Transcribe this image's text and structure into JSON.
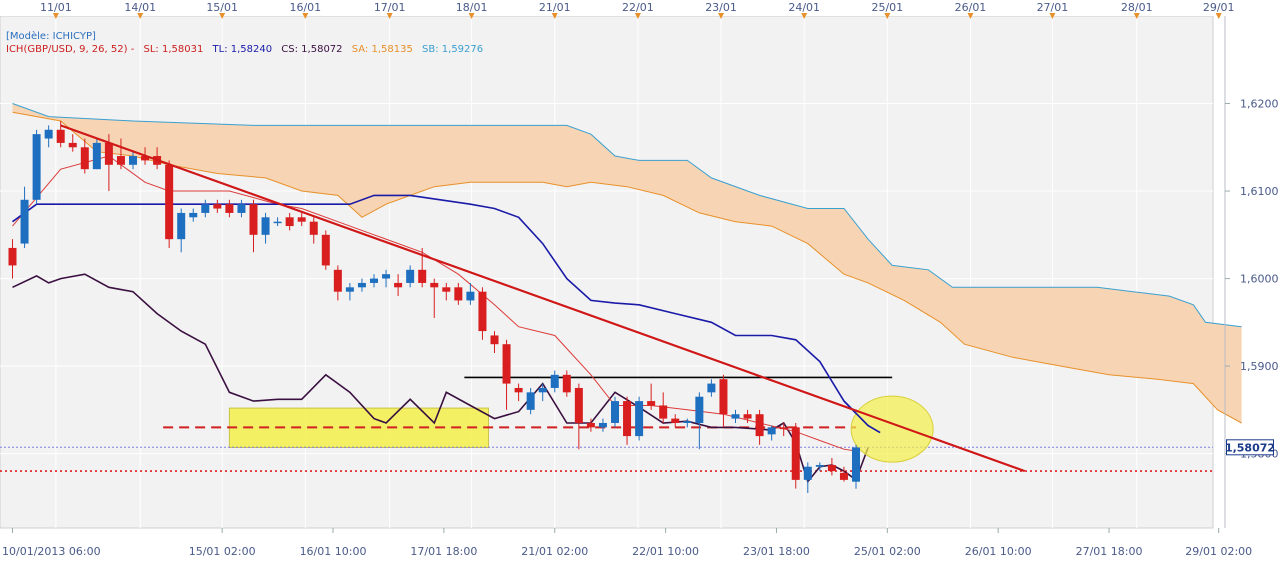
{
  "chart_data": {
    "type": "candlestick",
    "model_label": "[Modèle: ICHICYP]",
    "indicator": {
      "name": "ICH(GBP/USD, 9, 26, 52) -",
      "sl": "SL: 1,58031",
      "tl": "TL: 1,58240",
      "cs": "CS: 1,58072",
      "sa": "SA: 1,58135",
      "sb": "SB: 1,59276"
    },
    "current_price_label": "1,58072",
    "current_price": 1.58072,
    "ylim": [
      1.5715,
      1.63
    ],
    "y_ticks": [
      {
        "value": 1.62,
        "label": "1,6200"
      },
      {
        "value": 1.61,
        "label": "1,6100"
      },
      {
        "value": 1.6,
        "label": "1,6000"
      },
      {
        "value": 1.59,
        "label": "1,5900"
      },
      {
        "value": 1.58,
        "label": "1,5800"
      }
    ],
    "top_dates": [
      {
        "label": "11/01",
        "t": 3.6
      },
      {
        "label": "14/01",
        "t": 10.6
      },
      {
        "label": "15/01",
        "t": 17.4
      },
      {
        "label": "16/01",
        "t": 24.3
      },
      {
        "label": "17/01",
        "t": 31.3
      },
      {
        "label": "18/01",
        "t": 38.1
      },
      {
        "label": "21/01",
        "t": 45.0
      },
      {
        "label": "22/01",
        "t": 51.9
      },
      {
        "label": "23/01",
        "t": 58.8
      },
      {
        "label": "24/01",
        "t": 65.7
      },
      {
        "label": "25/01",
        "t": 72.6
      },
      {
        "label": "26/01",
        "t": 79.5
      },
      {
        "label": "27/01",
        "t": 86.3
      },
      {
        "label": "28/01",
        "t": 93.3
      },
      {
        "label": "29/01",
        "t": 100.1
      }
    ],
    "bottom_dates": [
      {
        "label": "10/01/2013 06:00",
        "t": 0
      },
      {
        "label": "15/01 02:00",
        "t": 17.4
      },
      {
        "label": "16/01 10:00",
        "t": 26.6
      },
      {
        "label": "17/01 18:00",
        "t": 35.8
      },
      {
        "label": "21/01 02:00",
        "t": 45.0
      },
      {
        "label": "22/01 10:00",
        "t": 54.2
      },
      {
        "label": "23/01 18:00",
        "t": 63.4
      },
      {
        "label": "25/01 02:00",
        "t": 72.6
      },
      {
        "label": "26/01 10:00",
        "t": 81.8
      },
      {
        "label": "27/01 18:00",
        "t": 91.0
      },
      {
        "label": "29/01 02:00",
        "t": 100.1
      }
    ],
    "candles": [
      {
        "t": 0,
        "o": 1.6035,
        "h": 1.6045,
        "l": 1.6,
        "c": 1.6015
      },
      {
        "t": 1,
        "o": 1.604,
        "h": 1.6105,
        "l": 1.6035,
        "c": 1.609
      },
      {
        "t": 2,
        "o": 1.609,
        "h": 1.617,
        "l": 1.6085,
        "c": 1.6165
      },
      {
        "t": 3,
        "o": 1.616,
        "h": 1.6175,
        "l": 1.615,
        "c": 1.617
      },
      {
        "t": 4,
        "o": 1.617,
        "h": 1.618,
        "l": 1.615,
        "c": 1.6155
      },
      {
        "t": 5,
        "o": 1.6155,
        "h": 1.6165,
        "l": 1.6145,
        "c": 1.615
      },
      {
        "t": 6,
        "o": 1.615,
        "h": 1.616,
        "l": 1.612,
        "c": 1.6125
      },
      {
        "t": 7,
        "o": 1.6125,
        "h": 1.616,
        "l": 1.6125,
        "c": 1.6155
      },
      {
        "t": 8,
        "o": 1.6155,
        "h": 1.6165,
        "l": 1.61,
        "c": 1.613
      },
      {
        "t": 9,
        "o": 1.614,
        "h": 1.616,
        "l": 1.6125,
        "c": 1.613
      },
      {
        "t": 10,
        "o": 1.613,
        "h": 1.6145,
        "l": 1.6125,
        "c": 1.614
      },
      {
        "t": 11,
        "o": 1.614,
        "h": 1.615,
        "l": 1.613,
        "c": 1.6135
      },
      {
        "t": 12,
        "o": 1.614,
        "h": 1.615,
        "l": 1.6125,
        "c": 1.613
      },
      {
        "t": 13,
        "o": 1.613,
        "h": 1.6135,
        "l": 1.6035,
        "c": 1.6045
      },
      {
        "t": 14,
        "o": 1.6045,
        "h": 1.608,
        "l": 1.603,
        "c": 1.6075
      },
      {
        "t": 15,
        "o": 1.607,
        "h": 1.608,
        "l": 1.6065,
        "c": 1.6075
      },
      {
        "t": 16,
        "o": 1.6075,
        "h": 1.609,
        "l": 1.607,
        "c": 1.6085
      },
      {
        "t": 17,
        "o": 1.6085,
        "h": 1.609,
        "l": 1.6075,
        "c": 1.608
      },
      {
        "t": 18,
        "o": 1.6085,
        "h": 1.609,
        "l": 1.607,
        "c": 1.6075
      },
      {
        "t": 19,
        "o": 1.6075,
        "h": 1.609,
        "l": 1.607,
        "c": 1.6085
      },
      {
        "t": 20,
        "o": 1.6085,
        "h": 1.609,
        "l": 1.603,
        "c": 1.605
      },
      {
        "t": 21,
        "o": 1.605,
        "h": 1.6075,
        "l": 1.604,
        "c": 1.607
      },
      {
        "t": 22,
        "o": 1.6065,
        "h": 1.607,
        "l": 1.606,
        "c": 1.6065
      },
      {
        "t": 23,
        "o": 1.607,
        "h": 1.6075,
        "l": 1.6055,
        "c": 1.606
      },
      {
        "t": 24,
        "o": 1.607,
        "h": 1.6075,
        "l": 1.606,
        "c": 1.6065
      },
      {
        "t": 25,
        "o": 1.6065,
        "h": 1.607,
        "l": 1.604,
        "c": 1.605
      },
      {
        "t": 26,
        "o": 1.605,
        "h": 1.6055,
        "l": 1.601,
        "c": 1.6015
      },
      {
        "t": 27,
        "o": 1.601,
        "h": 1.6015,
        "l": 1.5975,
        "c": 1.5985
      },
      {
        "t": 28,
        "o": 1.5985,
        "h": 1.5995,
        "l": 1.5975,
        "c": 1.599
      },
      {
        "t": 29,
        "o": 1.599,
        "h": 1.6,
        "l": 1.5985,
        "c": 1.5995
      },
      {
        "t": 30,
        "o": 1.5995,
        "h": 1.6005,
        "l": 1.599,
        "c": 1.6
      },
      {
        "t": 31,
        "o": 1.6,
        "h": 1.601,
        "l": 1.599,
        "c": 1.6005
      },
      {
        "t": 32,
        "o": 1.5995,
        "h": 1.6005,
        "l": 1.598,
        "c": 1.599
      },
      {
        "t": 33,
        "o": 1.5995,
        "h": 1.6015,
        "l": 1.599,
        "c": 1.601
      },
      {
        "t": 34,
        "o": 1.601,
        "h": 1.6035,
        "l": 1.599,
        "c": 1.5995
      },
      {
        "t": 35,
        "o": 1.5995,
        "h": 1.6,
        "l": 1.5955,
        "c": 1.599
      },
      {
        "t": 36,
        "o": 1.599,
        "h": 1.5995,
        "l": 1.5975,
        "c": 1.5985
      },
      {
        "t": 37,
        "o": 1.599,
        "h": 1.5995,
        "l": 1.597,
        "c": 1.5975
      },
      {
        "t": 38,
        "o": 1.5975,
        "h": 1.5995,
        "l": 1.597,
        "c": 1.5985
      },
      {
        "t": 39,
        "o": 1.5985,
        "h": 1.599,
        "l": 1.593,
        "c": 1.594
      },
      {
        "t": 40,
        "o": 1.5935,
        "h": 1.594,
        "l": 1.5915,
        "c": 1.5925
      },
      {
        "t": 41,
        "o": 1.5925,
        "h": 1.593,
        "l": 1.585,
        "c": 1.588
      },
      {
        "t": 42,
        "o": 1.5875,
        "h": 1.588,
        "l": 1.586,
        "c": 1.587
      },
      {
        "t": 43,
        "o": 1.585,
        "h": 1.5875,
        "l": 1.5845,
        "c": 1.587
      },
      {
        "t": 44,
        "o": 1.587,
        "h": 1.588,
        "l": 1.586,
        "c": 1.5875
      },
      {
        "t": 45,
        "o": 1.5875,
        "h": 1.5895,
        "l": 1.587,
        "c": 1.589
      },
      {
        "t": 46,
        "o": 1.589,
        "h": 1.5895,
        "l": 1.5865,
        "c": 1.587
      },
      {
        "t": 47,
        "o": 1.5875,
        "h": 1.588,
        "l": 1.5805,
        "c": 1.5835
      },
      {
        "t": 48,
        "o": 1.5835,
        "h": 1.584,
        "l": 1.5825,
        "c": 1.583
      },
      {
        "t": 49,
        "o": 1.583,
        "h": 1.584,
        "l": 1.5825,
        "c": 1.5835
      },
      {
        "t": 50,
        "o": 1.5835,
        "h": 1.5865,
        "l": 1.583,
        "c": 1.586
      },
      {
        "t": 51,
        "o": 1.586,
        "h": 1.5865,
        "l": 1.581,
        "c": 1.582
      },
      {
        "t": 52,
        "o": 1.582,
        "h": 1.5865,
        "l": 1.5815,
        "c": 1.586
      },
      {
        "t": 53,
        "o": 1.586,
        "h": 1.588,
        "l": 1.585,
        "c": 1.5855
      },
      {
        "t": 54,
        "o": 1.5855,
        "h": 1.587,
        "l": 1.5835,
        "c": 1.584
      },
      {
        "t": 55,
        "o": 1.584,
        "h": 1.5845,
        "l": 1.583,
        "c": 1.5835
      },
      {
        "t": 56,
        "o": 1.5835,
        "h": 1.584,
        "l": 1.583,
        "c": 1.5837
      },
      {
        "t": 57,
        "o": 1.5835,
        "h": 1.587,
        "l": 1.5805,
        "c": 1.5865
      },
      {
        "t": 58,
        "o": 1.587,
        "h": 1.5885,
        "l": 1.5865,
        "c": 1.588
      },
      {
        "t": 59,
        "o": 1.5885,
        "h": 1.589,
        "l": 1.583,
        "c": 1.5845
      },
      {
        "t": 60,
        "o": 1.584,
        "h": 1.585,
        "l": 1.5835,
        "c": 1.5845
      },
      {
        "t": 61,
        "o": 1.5845,
        "h": 1.585,
        "l": 1.5835,
        "c": 1.584
      },
      {
        "t": 62,
        "o": 1.5845,
        "h": 1.585,
        "l": 1.581,
        "c": 1.582
      },
      {
        "t": 63,
        "o": 1.5822,
        "h": 1.5832,
        "l": 1.5815,
        "c": 1.583
      },
      {
        "t": 64,
        "o": 1.583,
        "h": 1.5835,
        "l": 1.582,
        "c": 1.5828
      },
      {
        "t": 65,
        "o": 1.583,
        "h": 1.5835,
        "l": 1.576,
        "c": 1.577
      },
      {
        "t": 66,
        "o": 1.577,
        "h": 1.579,
        "l": 1.5755,
        "c": 1.5785
      },
      {
        "t": 67,
        "o": 1.5785,
        "h": 1.579,
        "l": 1.578,
        "c": 1.5787
      },
      {
        "t": 68,
        "o": 1.5787,
        "h": 1.5795,
        "l": 1.5775,
        "c": 1.578
      },
      {
        "t": 69,
        "o": 1.5778,
        "h": 1.5785,
        "l": 1.5768,
        "c": 1.577
      },
      {
        "t": 70,
        "o": 1.5768,
        "h": 1.581,
        "l": 1.576,
        "c": 1.5807
      }
    ],
    "tenkan": [
      {
        "t": 0,
        "v": 1.606
      },
      {
        "t": 4,
        "v": 1.6125
      },
      {
        "t": 8,
        "v": 1.614
      },
      {
        "t": 11,
        "v": 1.611
      },
      {
        "t": 13,
        "v": 1.61
      },
      {
        "t": 18,
        "v": 1.61
      },
      {
        "t": 22,
        "v": 1.6085
      },
      {
        "t": 24,
        "v": 1.608
      },
      {
        "t": 27,
        "v": 1.6065
      },
      {
        "t": 30,
        "v": 1.605
      },
      {
        "t": 34,
        "v": 1.603
      },
      {
        "t": 37,
        "v": 1.6005
      },
      {
        "t": 40,
        "v": 1.597
      },
      {
        "t": 42,
        "v": 1.5945
      },
      {
        "t": 45,
        "v": 1.5935
      },
      {
        "t": 48,
        "v": 1.589
      },
      {
        "t": 50,
        "v": 1.5855
      },
      {
        "t": 53,
        "v": 1.5855
      },
      {
        "t": 56,
        "v": 1.585
      },
      {
        "t": 59,
        "v": 1.5845
      },
      {
        "t": 62,
        "v": 1.5835
      },
      {
        "t": 65,
        "v": 1.5825
      },
      {
        "t": 67,
        "v": 1.5815
      },
      {
        "t": 69,
        "v": 1.5805
      },
      {
        "t": 70,
        "v": 1.5803
      }
    ],
    "kijun": [
      {
        "t": 0,
        "v": 1.6065
      },
      {
        "t": 2,
        "v": 1.6085
      },
      {
        "t": 28,
        "v": 1.6085
      },
      {
        "t": 30,
        "v": 1.6095
      },
      {
        "t": 33,
        "v": 1.6095
      },
      {
        "t": 38,
        "v": 1.6085
      },
      {
        "t": 40,
        "v": 1.608
      },
      {
        "t": 42,
        "v": 1.607
      },
      {
        "t": 44,
        "v": 1.604
      },
      {
        "t": 46,
        "v": 1.6
      },
      {
        "t": 48,
        "v": 1.5975
      },
      {
        "t": 50,
        "v": 1.5972
      },
      {
        "t": 52,
        "v": 1.597
      },
      {
        "t": 55,
        "v": 1.596
      },
      {
        "t": 58,
        "v": 1.595
      },
      {
        "t": 60,
        "v": 1.5935
      },
      {
        "t": 63,
        "v": 1.5935
      },
      {
        "t": 65,
        "v": 1.593
      },
      {
        "t": 67,
        "v": 1.5905
      },
      {
        "t": 69,
        "v": 1.586
      },
      {
        "t": 71,
        "v": 1.5832
      },
      {
        "t": 72,
        "v": 1.5824
      }
    ],
    "chikou": [
      {
        "t": 0,
        "v": 1.599
      },
      {
        "t": 2,
        "v": 1.6003
      },
      {
        "t": 3,
        "v": 1.5995
      },
      {
        "t": 4,
        "v": 1.6
      },
      {
        "t": 6,
        "v": 1.6005
      },
      {
        "t": 8,
        "v": 1.599
      },
      {
        "t": 10,
        "v": 1.5985
      },
      {
        "t": 12,
        "v": 1.596
      },
      {
        "t": 14,
        "v": 1.594
      },
      {
        "t": 16,
        "v": 1.5925
      },
      {
        "t": 18,
        "v": 1.587
      },
      {
        "t": 20,
        "v": 1.586
      },
      {
        "t": 22,
        "v": 1.5862
      },
      {
        "t": 24,
        "v": 1.5862
      },
      {
        "t": 26,
        "v": 1.589
      },
      {
        "t": 28,
        "v": 1.587
      },
      {
        "t": 30,
        "v": 1.584
      },
      {
        "t": 31,
        "v": 1.5835
      },
      {
        "t": 33,
        "v": 1.5862
      },
      {
        "t": 35,
        "v": 1.5835
      },
      {
        "t": 36,
        "v": 1.587
      },
      {
        "t": 38,
        "v": 1.5855
      },
      {
        "t": 40,
        "v": 1.584
      },
      {
        "t": 42,
        "v": 1.5848
      },
      {
        "t": 44,
        "v": 1.588
      },
      {
        "t": 46,
        "v": 1.5835
      },
      {
        "t": 48,
        "v": 1.5835
      },
      {
        "t": 50,
        "v": 1.587
      },
      {
        "t": 52,
        "v": 1.5853
      },
      {
        "t": 54,
        "v": 1.5835
      },
      {
        "t": 56,
        "v": 1.5837
      },
      {
        "t": 58,
        "v": 1.583
      },
      {
        "t": 60,
        "v": 1.583
      },
      {
        "t": 62,
        "v": 1.5828
      },
      {
        "t": 63,
        "v": 1.5827
      },
      {
        "t": 64,
        "v": 1.5835
      },
      {
        "t": 65,
        "v": 1.5812
      },
      {
        "t": 66,
        "v": 1.5768
      },
      {
        "t": 67,
        "v": 1.5785
      },
      {
        "t": 68,
        "v": 1.5787
      },
      {
        "t": 69,
        "v": 1.578
      },
      {
        "t": 70,
        "v": 1.577
      },
      {
        "t": 71,
        "v": 1.5807
      }
    ],
    "senkou_a": [
      {
        "t": 0,
        "v": 1.619
      },
      {
        "t": 4,
        "v": 1.618
      },
      {
        "t": 7,
        "v": 1.6145
      },
      {
        "t": 10,
        "v": 1.614
      },
      {
        "t": 13,
        "v": 1.613
      },
      {
        "t": 17,
        "v": 1.612
      },
      {
        "t": 21,
        "v": 1.6115
      },
      {
        "t": 24,
        "v": 1.61
      },
      {
        "t": 27,
        "v": 1.6095
      },
      {
        "t": 29,
        "v": 1.607
      },
      {
        "t": 31,
        "v": 1.6085
      },
      {
        "t": 33,
        "v": 1.6095
      },
      {
        "t": 35,
        "v": 1.6105
      },
      {
        "t": 38,
        "v": 1.611
      },
      {
        "t": 41,
        "v": 1.611
      },
      {
        "t": 44,
        "v": 1.611
      },
      {
        "t": 46,
        "v": 1.6105
      },
      {
        "t": 48,
        "v": 1.611
      },
      {
        "t": 51,
        "v": 1.6105
      },
      {
        "t": 54,
        "v": 1.6095
      },
      {
        "t": 57,
        "v": 1.6075
      },
      {
        "t": 60,
        "v": 1.6065
      },
      {
        "t": 63,
        "v": 1.606
      },
      {
        "t": 66,
        "v": 1.604
      },
      {
        "t": 69,
        "v": 1.6005
      },
      {
        "t": 71,
        "v": 1.5995
      },
      {
        "t": 74,
        "v": 1.5975
      },
      {
        "t": 77,
        "v": 1.595
      },
      {
        "t": 79,
        "v": 1.5925
      },
      {
        "t": 83,
        "v": 1.591
      },
      {
        "t": 87,
        "v": 1.59
      },
      {
        "t": 91,
        "v": 1.589
      },
      {
        "t": 95,
        "v": 1.5885
      },
      {
        "t": 98,
        "v": 1.588
      },
      {
        "t": 100,
        "v": 1.585
      },
      {
        "t": 102,
        "v": 1.5835
      }
    ],
    "senkou_b": [
      {
        "t": 0,
        "v": 1.62
      },
      {
        "t": 3,
        "v": 1.6185
      },
      {
        "t": 10,
        "v": 1.618
      },
      {
        "t": 20,
        "v": 1.6175
      },
      {
        "t": 40,
        "v": 1.6175
      },
      {
        "t": 46,
        "v": 1.6175
      },
      {
        "t": 48,
        "v": 1.6165
      },
      {
        "t": 50,
        "v": 1.614
      },
      {
        "t": 52,
        "v": 1.6135
      },
      {
        "t": 56,
        "v": 1.6135
      },
      {
        "t": 58,
        "v": 1.6115
      },
      {
        "t": 62,
        "v": 1.6095
      },
      {
        "t": 66,
        "v": 1.608
      },
      {
        "t": 69,
        "v": 1.608
      },
      {
        "t": 71,
        "v": 1.6045
      },
      {
        "t": 73,
        "v": 1.6015
      },
      {
        "t": 76,
        "v": 1.601
      },
      {
        "t": 78,
        "v": 1.599
      },
      {
        "t": 84,
        "v": 1.599
      },
      {
        "t": 90,
        "v": 1.599
      },
      {
        "t": 93,
        "v": 1.5985
      },
      {
        "t": 96,
        "v": 1.598
      },
      {
        "t": 98,
        "v": 1.597
      },
      {
        "t": 99,
        "v": 1.595
      },
      {
        "t": 102,
        "v": 1.5945
      }
    ],
    "trendline": {
      "t1": 4,
      "v1": 1.6175,
      "t2": 84,
      "v2": 1.578
    },
    "resistance_line": {
      "t1": 37.5,
      "t2": 73,
      "v": 1.5887
    },
    "support_dashed": {
      "t1": 12.5,
      "t2": 70,
      "v": 1.583
    },
    "lower_dotted": {
      "v": 1.578
    },
    "highlight_box": {
      "t1": 18,
      "t2": 39.5,
      "v1": 1.5852,
      "v2": 1.5807
    },
    "highlight_circle": {
      "t": 73,
      "v": 1.5828
    },
    "legend_colors": {
      "model": "#2a6fc0",
      "ich": "#cc2020",
      "sl": "#cc2020",
      "tl": "#1a1aa8",
      "cs": "#3a1040",
      "sa": "#e8902a",
      "sb": "#3aa0d0"
    }
  }
}
